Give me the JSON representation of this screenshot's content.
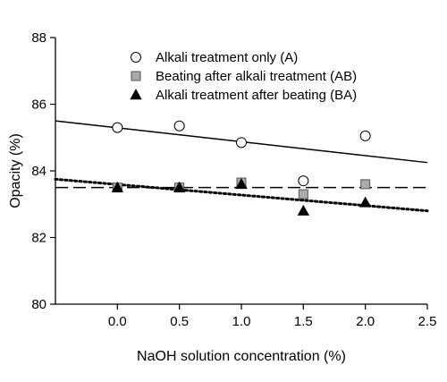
{
  "chart_data": {
    "type": "scatter",
    "xlabel": "NaOH solution concentration (%)",
    "ylabel": "Opacity (%)",
    "xlim": [
      -0.5,
      2.5
    ],
    "ylim": [
      80,
      88
    ],
    "x_ticks": [
      "0.0",
      "0.5",
      "1.0",
      "1.5",
      "2.0",
      "2.5"
    ],
    "y_ticks": [
      "80",
      "82",
      "84",
      "86",
      "88"
    ],
    "grid": false,
    "legend_position": "top-right",
    "series": [
      {
        "name": "Alkali treatment only (A)",
        "marker": "circle",
        "color": "#ffffff",
        "x": [
          0.0,
          0.5,
          1.0,
          1.5,
          2.0
        ],
        "y": [
          85.3,
          85.35,
          84.85,
          83.7,
          85.05
        ],
        "trend": {
          "style": "solid",
          "x": [
            -0.5,
            2.5
          ],
          "y": [
            85.5,
            84.25
          ]
        }
      },
      {
        "name": "Beating after alkali treatment (AB)",
        "marker": "square",
        "color": "#aaaaaa",
        "x": [
          0.0,
          0.5,
          1.0,
          1.5,
          2.0
        ],
        "y": [
          83.5,
          83.5,
          83.65,
          83.3,
          83.6
        ],
        "trend": {
          "style": "dashed",
          "x": [
            -0.5,
            2.5
          ],
          "y": [
            83.5,
            83.5
          ]
        }
      },
      {
        "name": "Alkali treatment after beating (BA)",
        "marker": "triangle",
        "color": "#000000",
        "x": [
          0.0,
          0.5,
          1.0,
          1.5,
          2.0
        ],
        "y": [
          83.5,
          83.5,
          83.6,
          82.8,
          83.05
        ],
        "trend": {
          "style": "dotted",
          "x": [
            -0.5,
            2.5
          ],
          "y": [
            83.75,
            82.8
          ]
        }
      }
    ]
  }
}
